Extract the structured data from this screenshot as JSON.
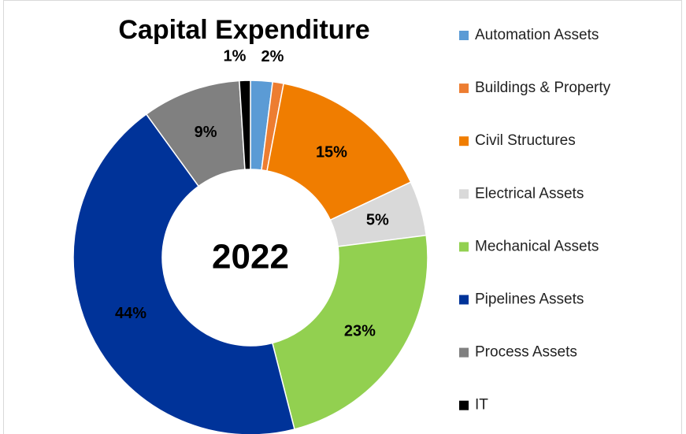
{
  "chart_data": {
    "type": "donut",
    "title": "Capital Expenditure",
    "center_label": "2022",
    "categories": [
      "Automation Assets",
      "Buildings & Property",
      "Civil Structures",
      "Electrical Assets",
      "Mechanical Assets",
      "Pipelines Assets",
      "Process Assets",
      "IT"
    ],
    "values": [
      2,
      1,
      15,
      5,
      23,
      44,
      9,
      1
    ],
    "value_labels": [
      "2%",
      null,
      "15%",
      "5%",
      "23%",
      "44%",
      "9%",
      "1%"
    ],
    "colors": [
      "#5b9bd5",
      "#ed7d31",
      "#f07d00",
      "#d9d9d9",
      "#92d050",
      "#003399",
      "#808080",
      "#000000"
    ],
    "legend": "right"
  }
}
